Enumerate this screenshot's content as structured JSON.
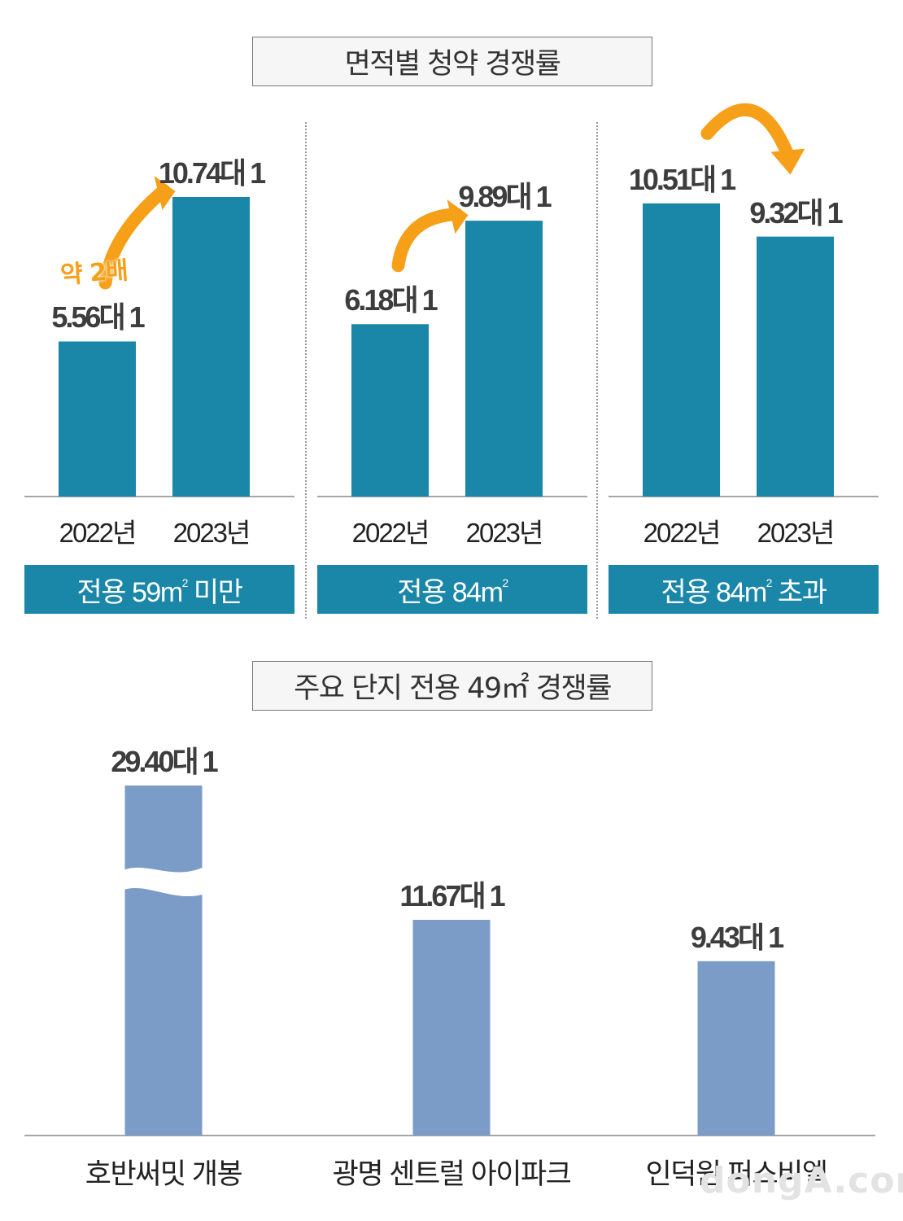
{
  "colors": {
    "bar_top": "#1a86a8",
    "bar_bottom": "#7b9cc6",
    "arrow": "#f6a01a",
    "axis": "#888888"
  },
  "section1": {
    "title": "면적별 청약 경쟁률",
    "annotation": "약 2배"
  },
  "section2": {
    "title": "주요 단지 전용 49㎡ 경쟁률"
  },
  "chart_data": [
    {
      "type": "bar",
      "title": "면적별 청약 경쟁률",
      "panels": [
        {
          "name": "전용 59㎡ 미만",
          "categories": [
            "2022년",
            "2023년"
          ],
          "values": [
            5.56,
            10.74
          ],
          "labels": [
            "5.56대 1",
            "10.74대 1"
          ],
          "trend": "up"
        },
        {
          "name": "전용 84㎡",
          "categories": [
            "2022년",
            "2023년"
          ],
          "values": [
            6.18,
            9.89
          ],
          "labels": [
            "6.18대 1",
            "9.89대 1"
          ],
          "trend": "up"
        },
        {
          "name": "전용 84㎡ 초과",
          "categories": [
            "2022년",
            "2023년"
          ],
          "values": [
            10.51,
            9.32
          ],
          "labels": [
            "10.51대 1",
            "9.32대 1"
          ],
          "trend": "down"
        }
      ],
      "ylim": [
        0,
        13
      ]
    },
    {
      "type": "bar",
      "title": "주요 단지 전용 49㎡ 경쟁률",
      "categories": [
        "호반써밋 개봉",
        "광명 센트럴 아이파크",
        "인덕원 퍼스비엘"
      ],
      "values": [
        29.4,
        11.67,
        9.43
      ],
      "labels": [
        "29.40대 1",
        "11.67대 1",
        "9.43대 1"
      ],
      "axis_break": true
    }
  ],
  "watermark": "dongA.com"
}
